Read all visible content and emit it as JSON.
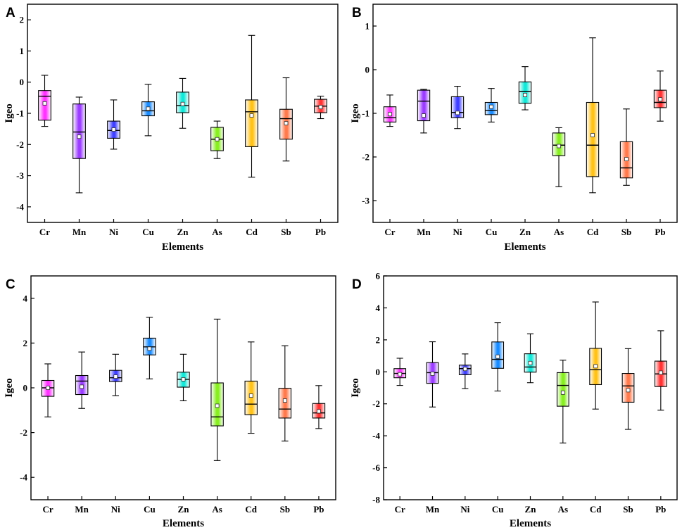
{
  "colors": {
    "Cr": "#ff33ff",
    "Mn": "#9b3dff",
    "Ni": "#4040ff",
    "Cu": "#1a8cff",
    "Zn": "#12e8d8",
    "As": "#88ee22",
    "Cd": "#ffc21a",
    "Sb": "#ff7a4d",
    "Pb": "#ff3333"
  },
  "chart_data": [
    {
      "type": "box",
      "panel": "A",
      "xlabel": "Elements",
      "ylabel": "Igeo",
      "ylim": [
        -4.5,
        2.5
      ],
      "yticks": [
        -4,
        -3,
        -2,
        -1,
        0,
        1,
        2
      ],
      "categories": [
        "Cr",
        "Mn",
        "Ni",
        "Cu",
        "Zn",
        "As",
        "Cd",
        "Sb",
        "Pb"
      ],
      "boxes": [
        {
          "min": -1.42,
          "q1": -1.22,
          "median": -0.45,
          "q3": -0.27,
          "max": 0.22,
          "mean": -0.68
        },
        {
          "min": -3.55,
          "q1": -2.45,
          "median": -1.6,
          "q3": -0.7,
          "max": -0.48,
          "mean": -1.75
        },
        {
          "min": -2.15,
          "q1": -1.8,
          "median": -1.55,
          "q3": -1.25,
          "max": -0.57,
          "mean": -1.52
        },
        {
          "min": -1.72,
          "q1": -1.08,
          "median": -0.92,
          "q3": -0.63,
          "max": -0.07,
          "mean": -0.85
        },
        {
          "min": -1.48,
          "q1": -0.98,
          "median": -0.75,
          "q3": -0.32,
          "max": 0.12,
          "mean": -0.7
        },
        {
          "min": -2.45,
          "q1": -2.2,
          "median": -1.83,
          "q3": -1.45,
          "max": -1.25,
          "mean": -1.83
        },
        {
          "min": -3.05,
          "q1": -2.07,
          "median": -0.95,
          "q3": -0.57,
          "max": 1.5,
          "mean": -1.07
        },
        {
          "min": -2.53,
          "q1": -1.83,
          "median": -1.17,
          "q3": -0.87,
          "max": 0.14,
          "mean": -1.32
        },
        {
          "min": -1.17,
          "q1": -0.98,
          "median": -0.77,
          "q3": -0.55,
          "max": -0.45,
          "mean": -0.8
        }
      ]
    },
    {
      "type": "box",
      "panel": "B",
      "xlabel": "Elements",
      "ylabel": "Igeo",
      "ylim": [
        -3.5,
        1.5
      ],
      "yticks": [
        -3,
        -2,
        -1,
        0,
        1
      ],
      "categories": [
        "Cr",
        "Mn",
        "Ni",
        "Cu",
        "Zn",
        "As",
        "Cd",
        "Sb",
        "Pb"
      ],
      "boxes": [
        {
          "min": -1.3,
          "q1": -1.2,
          "median": -1.1,
          "q3": -0.85,
          "max": -0.58,
          "mean": -1.02
        },
        {
          "min": -1.45,
          "q1": -1.17,
          "median": -0.72,
          "q3": -0.47,
          "max": -0.45,
          "mean": -1.05
        },
        {
          "min": -1.35,
          "q1": -1.1,
          "median": -0.98,
          "q3": -0.62,
          "max": -0.38,
          "mean": -0.99
        },
        {
          "min": -1.2,
          "q1": -1.03,
          "median": -0.93,
          "q3": -0.75,
          "max": -0.43,
          "mean": -0.85
        },
        {
          "min": -0.92,
          "q1": -0.77,
          "median": -0.5,
          "q3": -0.28,
          "max": 0.07,
          "mean": -0.58
        },
        {
          "min": -2.68,
          "q1": -1.97,
          "median": -1.73,
          "q3": -1.45,
          "max": -1.33,
          "mean": -1.75
        },
        {
          "min": -2.82,
          "q1": -2.45,
          "median": -1.73,
          "q3": -0.75,
          "max": 0.73,
          "mean": -1.5
        },
        {
          "min": -2.65,
          "q1": -2.48,
          "median": -2.25,
          "q3": -1.65,
          "max": -0.9,
          "mean": -2.05
        },
        {
          "min": -1.18,
          "q1": -0.87,
          "median": -0.75,
          "q3": -0.47,
          "max": -0.03,
          "mean": -0.68
        }
      ]
    },
    {
      "type": "box",
      "panel": "C",
      "xlabel": "Elements",
      "ylabel": "Igeo",
      "ylim": [
        -5,
        5
      ],
      "yticks": [
        -4,
        -2,
        0,
        2,
        4
      ],
      "categories": [
        "Cr",
        "Mn",
        "Ni",
        "Cu",
        "Zn",
        "As",
        "Cd",
        "Sb",
        "Pb"
      ],
      "boxes": [
        {
          "min": -1.3,
          "q1": -0.38,
          "median": 0,
          "q3": 0.33,
          "max": 1.07,
          "mean": 0
        },
        {
          "min": -0.92,
          "q1": -0.3,
          "median": 0.3,
          "q3": 0.55,
          "max": 1.6,
          "mean": 0.05
        },
        {
          "min": -0.35,
          "q1": 0.28,
          "median": 0.45,
          "q3": 0.78,
          "max": 1.5,
          "mean": 0.5
        },
        {
          "min": 0.4,
          "q1": 1.47,
          "median": 1.83,
          "q3": 2.22,
          "max": 3.15,
          "mean": 1.75
        },
        {
          "min": -0.58,
          "q1": 0.03,
          "median": 0.38,
          "q3": 0.7,
          "max": 1.5,
          "mean": 0.38
        },
        {
          "min": -3.25,
          "q1": -1.7,
          "median": -1.3,
          "q3": 0.22,
          "max": 3.07,
          "mean": -0.8
        },
        {
          "min": -2.03,
          "q1": -1.2,
          "median": -0.73,
          "q3": 0.3,
          "max": 2.05,
          "mean": -0.35
        },
        {
          "min": -2.38,
          "q1": -1.35,
          "median": -0.95,
          "q3": -0.02,
          "max": 1.88,
          "mean": -0.57
        },
        {
          "min": -1.82,
          "q1": -1.35,
          "median": -1.12,
          "q3": -0.7,
          "max": 0.1,
          "mean": -1.05
        }
      ]
    },
    {
      "type": "box",
      "panel": "D",
      "xlabel": "Elements",
      "ylabel": "Igeo",
      "ylim": [
        -8,
        6
      ],
      "yticks": [
        -8,
        -6,
        -4,
        -2,
        0,
        2,
        4,
        6
      ],
      "categories": [
        "Cr",
        "Mn",
        "Ni",
        "Cu",
        "Zn",
        "As",
        "Cd",
        "Sb",
        "Pb"
      ],
      "boxes": [
        {
          "min": -0.85,
          "q1": -0.37,
          "median": -0.1,
          "q3": 0.2,
          "max": 0.85,
          "mean": -0.15
        },
        {
          "min": -2.2,
          "q1": -0.72,
          "median": -0.05,
          "q3": 0.58,
          "max": 1.88,
          "mean": -0.12
        },
        {
          "min": -1.05,
          "q1": -0.18,
          "median": 0.2,
          "q3": 0.42,
          "max": 1.12,
          "mean": 0.18
        },
        {
          "min": -1.2,
          "q1": 0.22,
          "median": 0.78,
          "q3": 1.87,
          "max": 3.07,
          "mean": 0.95
        },
        {
          "min": -0.68,
          "q1": -0.02,
          "median": 0.3,
          "q3": 1.13,
          "max": 2.38,
          "mean": 0.55
        },
        {
          "min": -4.45,
          "q1": -2.15,
          "median": -0.85,
          "q3": -0.05,
          "max": 0.73,
          "mean": -1.3
        },
        {
          "min": -2.33,
          "q1": -0.8,
          "median": 0.13,
          "q3": 1.47,
          "max": 4.37,
          "mean": 0.35
        },
        {
          "min": -3.6,
          "q1": -1.9,
          "median": -0.88,
          "q3": -0.1,
          "max": 1.45,
          "mean": -1.15
        },
        {
          "min": -2.4,
          "q1": -0.92,
          "median": -0.13,
          "q3": 0.67,
          "max": 2.57,
          "mean": -0.05
        }
      ]
    }
  ]
}
